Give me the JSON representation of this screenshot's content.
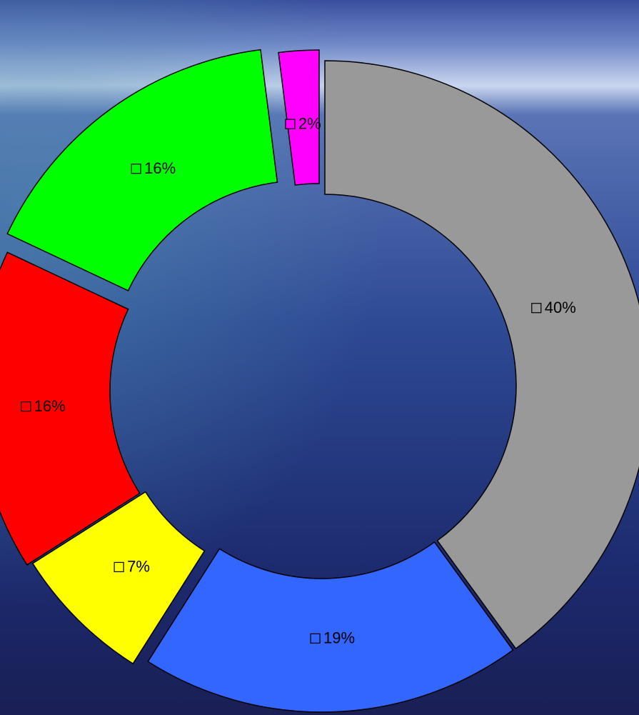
{
  "chart_data": {
    "type": "pie",
    "style": "exploded donut",
    "start": "12 o'clock, clockwise",
    "slices": [
      {
        "label": "40%",
        "value": 40,
        "color": "#999999",
        "marker": "empty-square-icon"
      },
      {
        "label": "19%",
        "value": 19,
        "color": "#3366FF",
        "marker": "empty-square-icon"
      },
      {
        "label": "7%",
        "value": 7,
        "color": "#FFFF00",
        "marker": "empty-square-icon"
      },
      {
        "label": "16%",
        "value": 16,
        "color": "#FF0000",
        "marker": "empty-square-icon"
      },
      {
        "label": "16%",
        "value": 16,
        "color": "#00FF00",
        "marker": "empty-square-icon"
      },
      {
        "label": "2%",
        "value": 2,
        "color": "#FF00FF",
        "marker": "filled-square-icon"
      }
    ]
  },
  "background": {
    "description_colors": {
      "sky_top": "#3a4f9e",
      "horizon": "#c9d6ee",
      "sea_mid": "#2e4a94",
      "sea_deep": "#1c2a6e",
      "sea_edge": "#1a1f55"
    }
  }
}
